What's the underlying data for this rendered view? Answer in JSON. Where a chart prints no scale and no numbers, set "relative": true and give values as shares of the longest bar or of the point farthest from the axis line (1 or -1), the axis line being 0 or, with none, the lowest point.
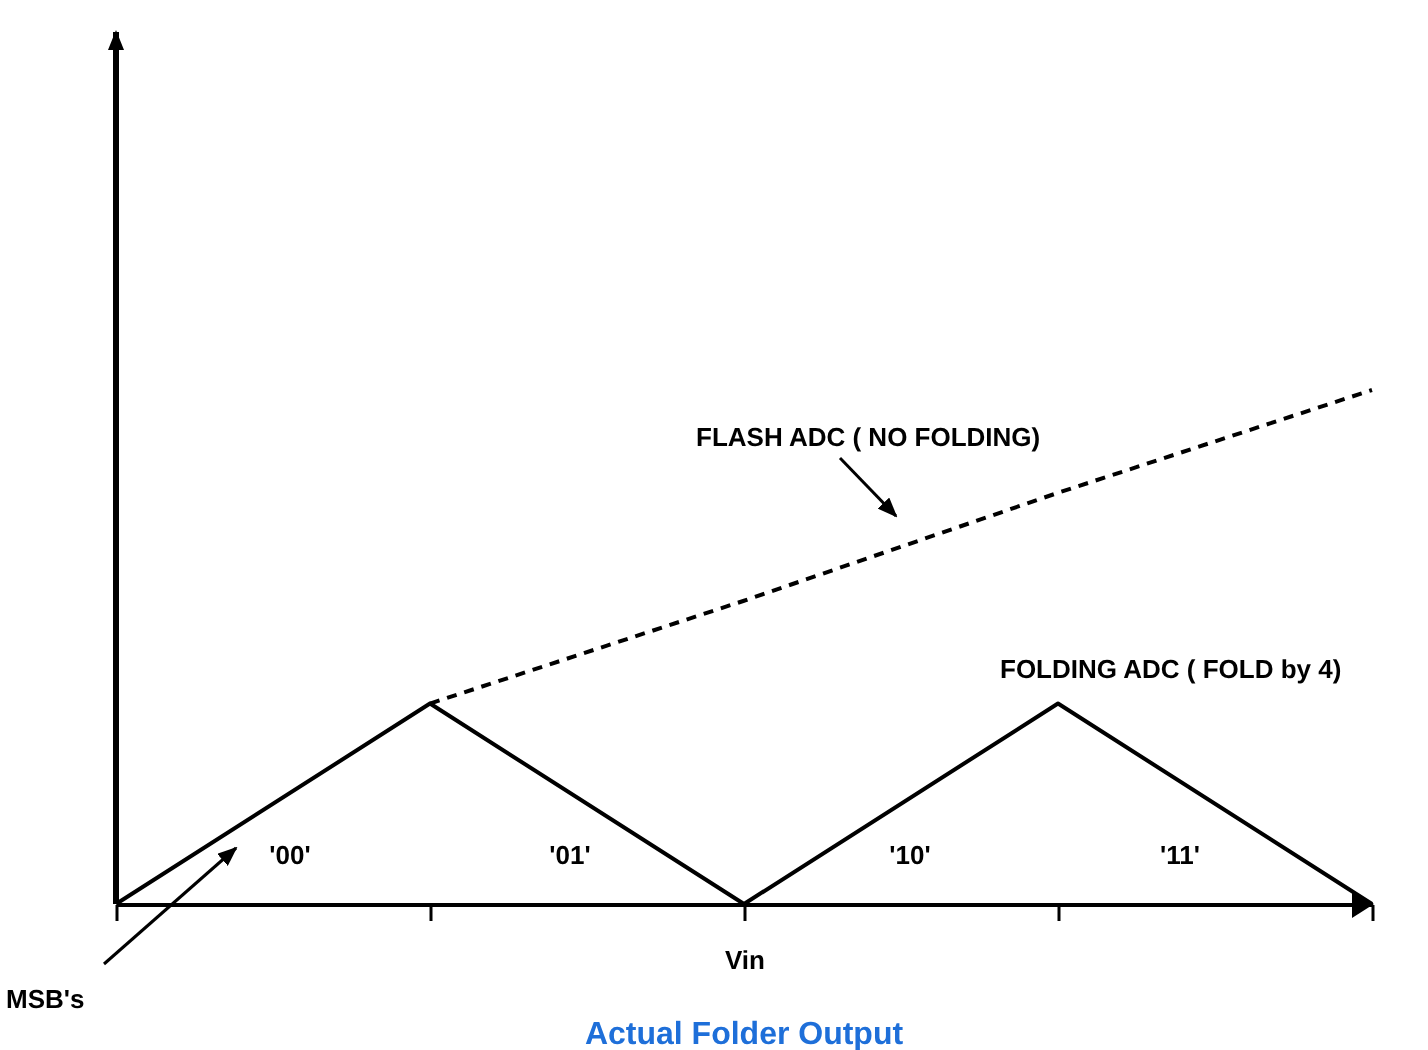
{
  "chart_data": {
    "type": "line",
    "title": "Actual Folder Output",
    "xlabel": "Vin",
    "relative": true,
    "grid": false,
    "marker": "none",
    "categories": [
      null,
      null,
      null,
      null,
      null
    ],
    "series": [
      {
        "name": "FLASH ADC ( NO FOLDING)",
        "color": "#000000",
        "line_style": "dashed",
        "values": [
          null,
          0.39,
          0.59,
          0.8,
          1
        ]
      },
      {
        "name": "FOLDING ADC ( FOLD by 4)",
        "color": "#000000",
        "line_style": "solid",
        "values": [
          0,
          0.39,
          0,
          0.39,
          0
        ]
      }
    ],
    "annotations": [
      "'00'",
      "'01'",
      "'10'",
      "'11'",
      "MSB's"
    ]
  }
}
